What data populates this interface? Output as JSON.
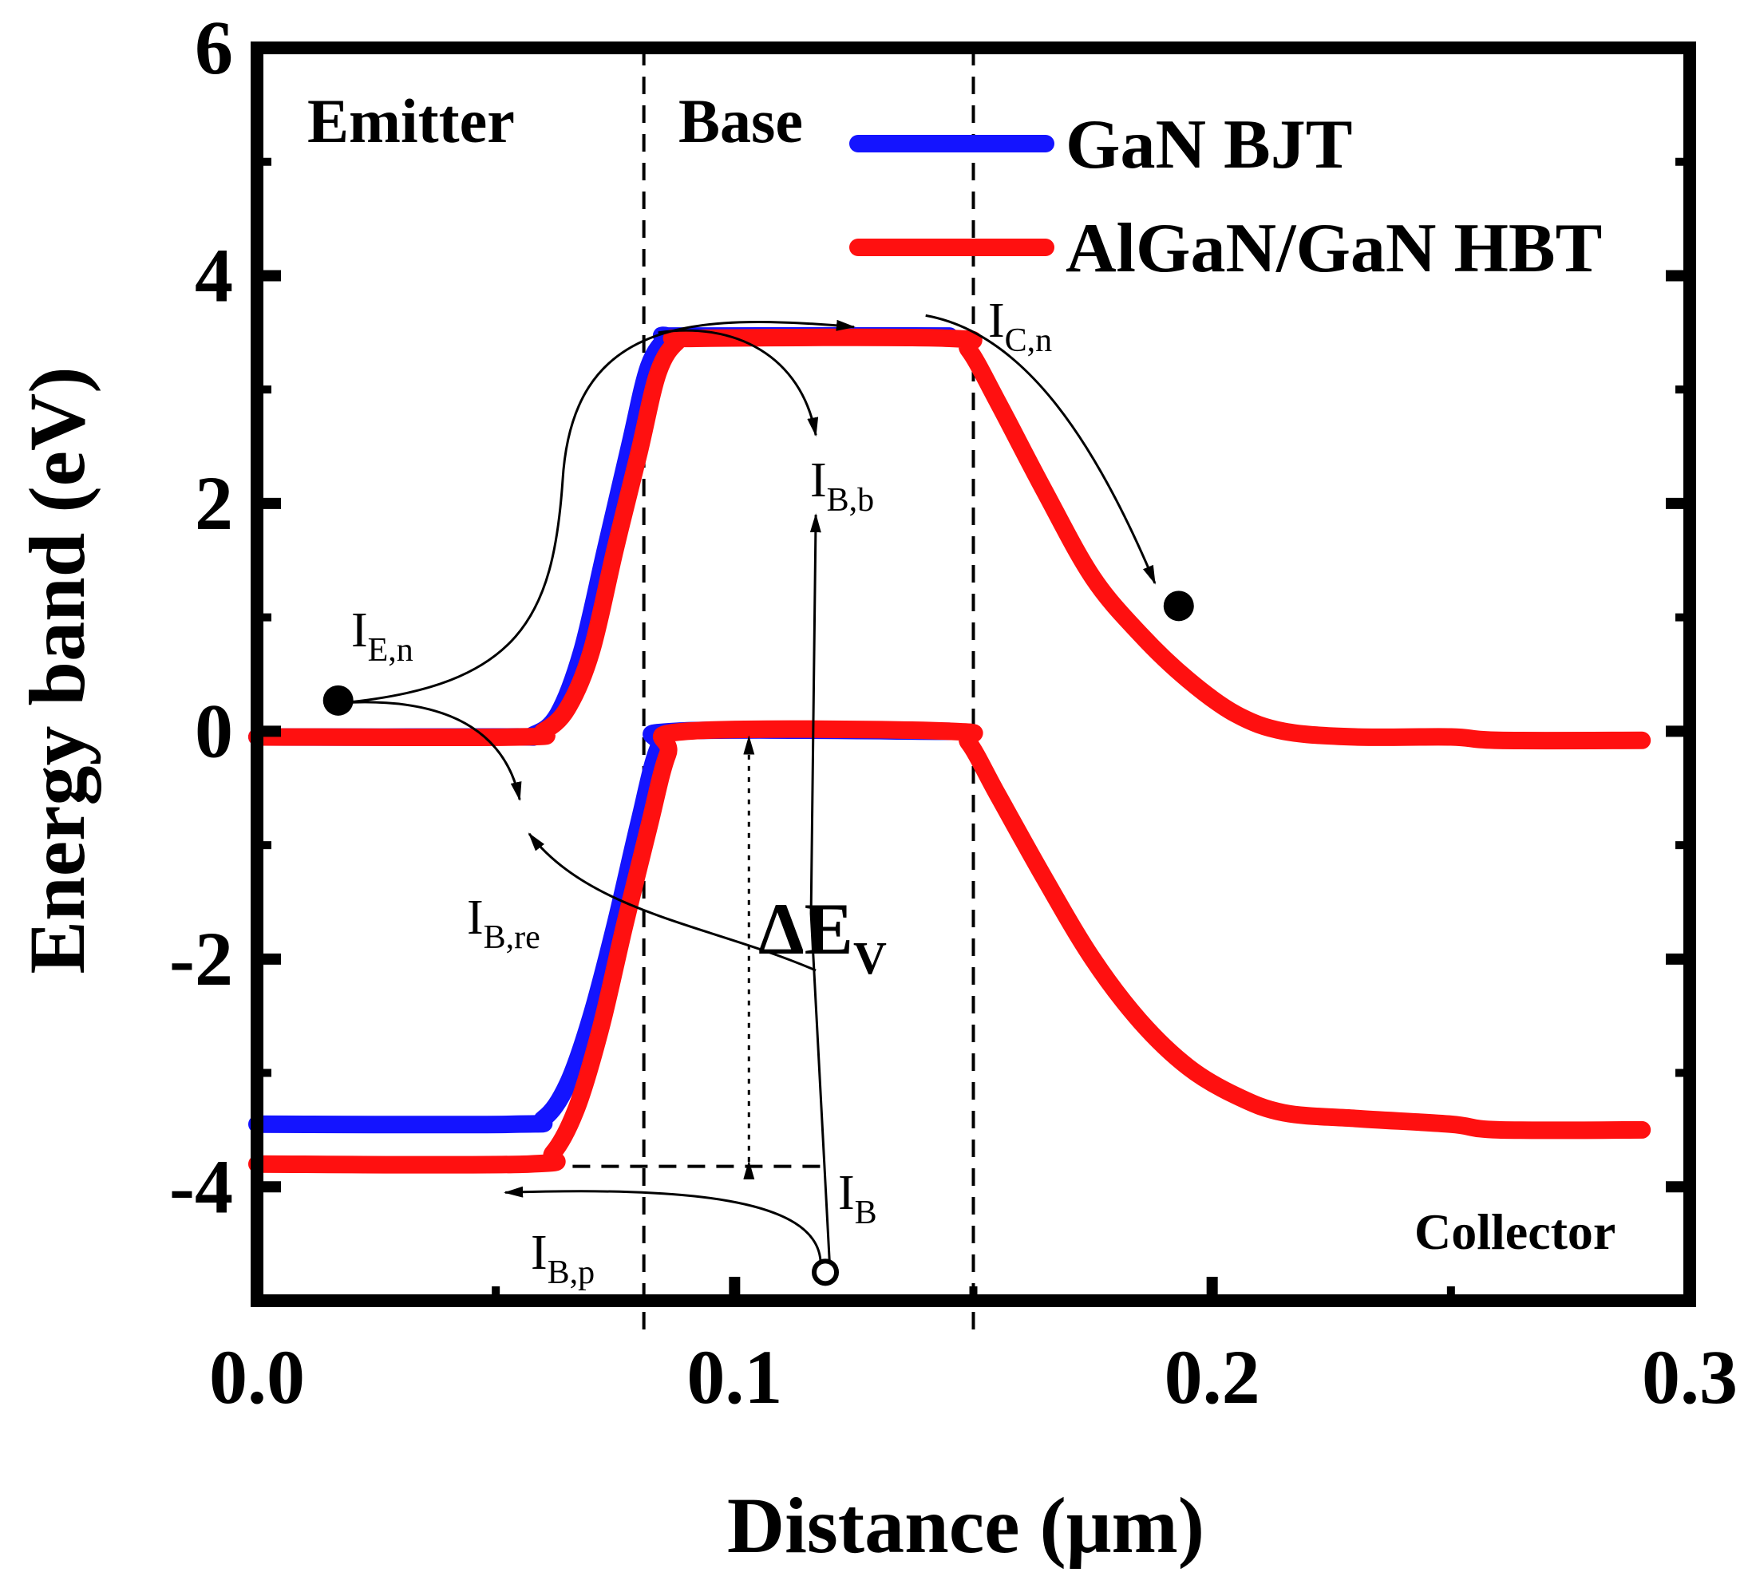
{
  "chart_data": {
    "type": "line",
    "xlabel": "Distance (μm)",
    "ylabel": "Energy band (eV)",
    "xlim": [
      0,
      0.3
    ],
    "ylim": [
      -5,
      6
    ],
    "xticks": [
      0.0,
      0.1,
      0.2,
      0.3
    ],
    "xtick_labels": [
      "0.0",
      "0.1",
      "0.2",
      "0.3"
    ],
    "yticks": [
      -4,
      -2,
      0,
      2,
      4,
      6
    ],
    "ytick_labels": [
      "-4",
      "-2",
      "0",
      "2",
      "4",
      "6"
    ],
    "legend_position": "top-right",
    "region_boundaries": [
      0.081,
      0.15
    ],
    "regions": {
      "emitter": "Emitter",
      "base": "Base",
      "collector": "Collector"
    },
    "series": [
      {
        "name": "GaN BJT",
        "color": "#1414ff",
        "conduction": [
          [
            0.0,
            -0.05
          ],
          [
            0.052,
            -0.05
          ],
          [
            0.058,
            -0.03
          ],
          [
            0.063,
            0.15
          ],
          [
            0.068,
            0.7
          ],
          [
            0.073,
            1.6
          ],
          [
            0.078,
            2.5
          ],
          [
            0.082,
            3.2
          ],
          [
            0.086,
            3.45
          ],
          [
            0.09,
            3.47
          ],
          [
            0.145,
            3.47
          ]
        ],
        "valence": [
          [
            0.0,
            -3.45
          ],
          [
            0.054,
            -3.45
          ],
          [
            0.06,
            -3.4
          ],
          [
            0.065,
            -3.1
          ],
          [
            0.07,
            -2.5
          ],
          [
            0.075,
            -1.7
          ],
          [
            0.08,
            -0.8
          ],
          [
            0.084,
            -0.15
          ],
          [
            0.088,
            0.0
          ],
          [
            0.145,
            0.0
          ]
        ]
      },
      {
        "name": "AlGaN/GaN HBT",
        "color": "#ff1010",
        "conduction": [
          [
            0.0,
            -0.05
          ],
          [
            0.055,
            -0.05
          ],
          [
            0.06,
            0.0
          ],
          [
            0.065,
            0.2
          ],
          [
            0.07,
            0.7
          ],
          [
            0.075,
            1.6
          ],
          [
            0.08,
            2.45
          ],
          [
            0.084,
            3.15
          ],
          [
            0.088,
            3.42
          ],
          [
            0.092,
            3.45
          ],
          [
            0.145,
            3.45
          ],
          [
            0.149,
            3.35
          ],
          [
            0.155,
            2.9
          ],
          [
            0.165,
            2.1
          ],
          [
            0.175,
            1.35
          ],
          [
            0.185,
            0.85
          ],
          [
            0.195,
            0.45
          ],
          [
            0.205,
            0.15
          ],
          [
            0.215,
            0.0
          ],
          [
            0.23,
            -0.05
          ],
          [
            0.25,
            -0.05
          ],
          [
            0.26,
            -0.08
          ],
          [
            0.29,
            -0.08
          ]
        ],
        "valence": [
          [
            0.0,
            -3.8
          ],
          [
            0.057,
            -3.8
          ],
          [
            0.062,
            -3.7
          ],
          [
            0.067,
            -3.3
          ],
          [
            0.072,
            -2.6
          ],
          [
            0.077,
            -1.7
          ],
          [
            0.082,
            -0.85
          ],
          [
            0.086,
            -0.2
          ],
          [
            0.09,
            0.0
          ],
          [
            0.145,
            0.0
          ],
          [
            0.149,
            -0.1
          ],
          [
            0.155,
            -0.55
          ],
          [
            0.165,
            -1.3
          ],
          [
            0.175,
            -2.0
          ],
          [
            0.185,
            -2.55
          ],
          [
            0.195,
            -2.95
          ],
          [
            0.205,
            -3.2
          ],
          [
            0.215,
            -3.35
          ],
          [
            0.23,
            -3.4
          ],
          [
            0.25,
            -3.45
          ],
          [
            0.26,
            -3.5
          ],
          [
            0.29,
            -3.5
          ]
        ]
      }
    ],
    "annotations": {
      "ie_main": "I",
      "ie_sub": "E,n",
      "ic_main": "I",
      "ic_sub": "C,n",
      "ibb_main": "I",
      "ibb_sub": "B,b",
      "ibre_main": "I",
      "ibre_sub": "B,re",
      "ib_main": "I",
      "ib_sub": "B",
      "ibp_main": "I",
      "ibp_sub": "B,p",
      "dev_main": "ΔE",
      "dev_sub": "V"
    }
  }
}
